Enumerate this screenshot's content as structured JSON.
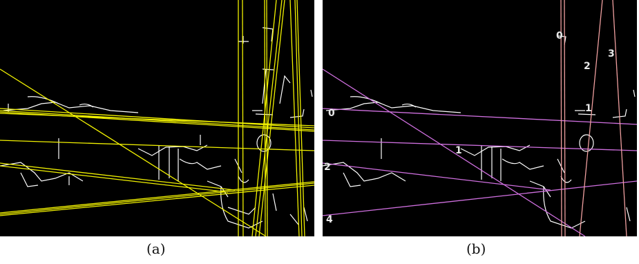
{
  "figure": {
    "panels": [
      {
        "id": "a",
        "caption": "(a)",
        "line_color": "#f2f200",
        "edge_color": "#ffffff",
        "background": "#000000"
      },
      {
        "id": "b",
        "caption": "(b)",
        "vertical_line_color": "#f0a0a0",
        "other_line_color": "#d070e0",
        "edge_color": "#ffffff",
        "background": "#000000",
        "labels": [
          "0",
          "1",
          "2",
          "3",
          "0",
          "1",
          "2",
          "3",
          "4"
        ]
      }
    ]
  }
}
